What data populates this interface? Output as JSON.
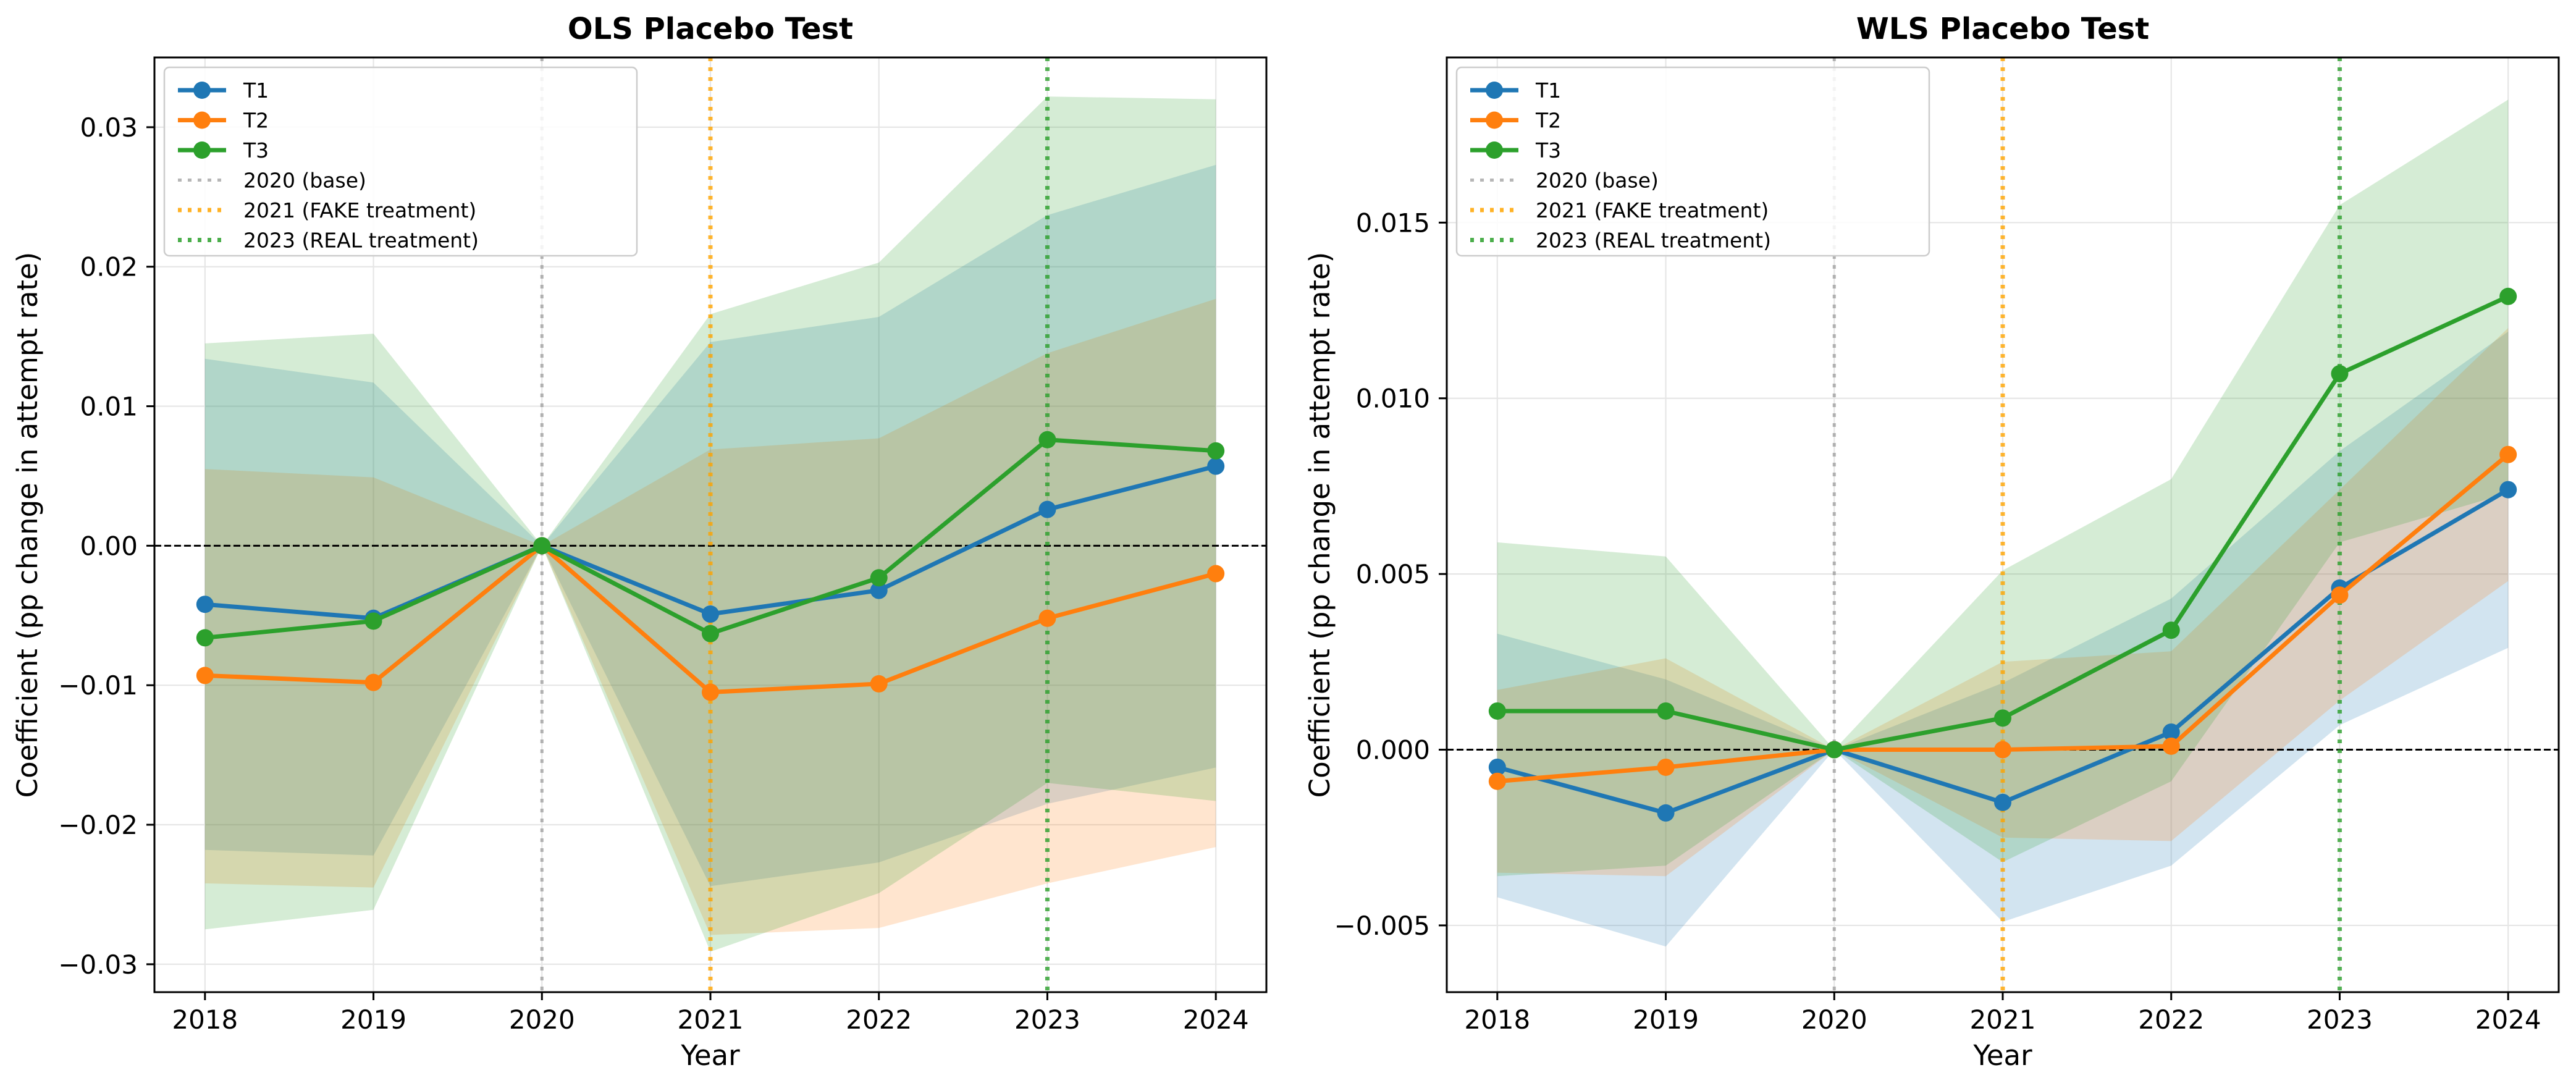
{
  "colors": {
    "T1": "#1f77b4",
    "T2": "#ff7f0e",
    "T3": "#2ca02c",
    "base": "#aaaaaa",
    "fake": "#ffa500",
    "real": "#2ca02c",
    "grid": "#e6e6e6",
    "zero": "#000000"
  },
  "chart_data": [
    {
      "type": "line",
      "title": "OLS Placebo Test",
      "xlabel": "Year",
      "ylabel": "Coefficient (pp change in attempt rate)",
      "x": [
        2018,
        2019,
        2020,
        2021,
        2022,
        2023,
        2024
      ],
      "xlim": [
        2017.7,
        2024.3
      ],
      "ylim": [
        -0.032,
        0.035
      ],
      "yticks": [
        -0.03,
        -0.02,
        -0.01,
        0.0,
        0.01,
        0.02,
        0.03
      ],
      "ytick_labels": [
        "−0.03",
        "−0.02",
        "−0.01",
        "0.00",
        "0.01",
        "0.02",
        "0.03"
      ],
      "grid": true,
      "legend_position": "top-left",
      "series": [
        {
          "name": "T1",
          "values": [
            -0.0042,
            -0.0052,
            0.0,
            -0.0049,
            -0.0032,
            0.0026,
            0.0057
          ],
          "ci_low": [
            -0.0218,
            -0.0222,
            0.0,
            -0.0244,
            -0.0227,
            -0.0185,
            -0.0159
          ],
          "ci_high": [
            0.0134,
            0.0117,
            0.0,
            0.0146,
            0.0164,
            0.0237,
            0.0273
          ]
        },
        {
          "name": "T2",
          "values": [
            -0.0093,
            -0.0098,
            0.0,
            -0.0105,
            -0.0099,
            -0.0052,
            -0.002
          ],
          "ci_low": [
            -0.0242,
            -0.0245,
            0.0,
            -0.0279,
            -0.0274,
            -0.0242,
            -0.0216
          ],
          "ci_high": [
            0.0055,
            0.0049,
            0.0,
            0.0069,
            0.0077,
            0.0138,
            0.0177
          ]
        },
        {
          "name": "T3",
          "values": [
            -0.0066,
            -0.0054,
            0.0,
            -0.0063,
            -0.0023,
            0.0076,
            0.0068
          ],
          "ci_low": [
            -0.0275,
            -0.0261,
            0.0,
            -0.0291,
            -0.0249,
            -0.017,
            -0.0183
          ],
          "ci_high": [
            0.0145,
            0.0152,
            0.0,
            0.0166,
            0.0203,
            0.0322,
            0.032
          ]
        }
      ],
      "vlines": [
        {
          "x": 2020,
          "label": "2020 (base)",
          "color_key": "base"
        },
        {
          "x": 2021,
          "label": "2021 (FAKE treatment)",
          "color_key": "fake"
        },
        {
          "x": 2023,
          "label": "2023 (REAL treatment)",
          "color_key": "real"
        }
      ]
    },
    {
      "type": "line",
      "title": "WLS Placebo Test",
      "xlabel": "Year",
      "ylabel": "Coefficient (pp change in attempt rate)",
      "x": [
        2018,
        2019,
        2020,
        2021,
        2022,
        2023,
        2024
      ],
      "xlim": [
        2017.7,
        2024.3
      ],
      "ylim": [
        -0.0069,
        0.0197
      ],
      "yticks": [
        -0.005,
        0.0,
        0.005,
        0.01,
        0.015
      ],
      "ytick_labels": [
        "−0.005",
        "0.000",
        "0.005",
        "0.010",
        "0.015"
      ],
      "grid": true,
      "legend_position": "top-left",
      "series": [
        {
          "name": "T1",
          "values": [
            -0.0005,
            -0.0018,
            0.0,
            -0.0015,
            0.0005,
            0.0046,
            0.0074
          ],
          "ci_low": [
            -0.0042,
            -0.0056,
            0.0,
            -0.0049,
            -0.0033,
            0.0007,
            0.0029
          ],
          "ci_high": [
            0.0033,
            0.002,
            0.0,
            0.0019,
            0.0043,
            0.0085,
            0.0119
          ]
        },
        {
          "name": "T2",
          "values": [
            -0.0009,
            -0.0005,
            0.0,
            0.0,
            0.0001,
            0.0044,
            0.0084
          ],
          "ci_low": [
            -0.0035,
            -0.0036,
            0.0,
            -0.0025,
            -0.0026,
            0.0014,
            0.0048
          ],
          "ci_high": [
            0.0017,
            0.0026,
            0.0,
            0.0025,
            0.0028,
            0.0074,
            0.012
          ]
        },
        {
          "name": "T3",
          "values": [
            0.0011,
            0.0011,
            0.0,
            0.0009,
            0.0034,
            0.0107,
            0.0129
          ],
          "ci_low": [
            -0.0036,
            -0.0033,
            0.0,
            -0.0032,
            -0.0009,
            0.0059,
            0.0073
          ],
          "ci_high": [
            0.0059,
            0.0055,
            0.0,
            0.0051,
            0.0077,
            0.0155,
            0.0185
          ]
        }
      ],
      "vlines": [
        {
          "x": 2020,
          "label": "2020 (base)",
          "color_key": "base"
        },
        {
          "x": 2021,
          "label": "2021 (FAKE treatment)",
          "color_key": "fake"
        },
        {
          "x": 2023,
          "label": "2023 (REAL treatment)",
          "color_key": "real"
        }
      ]
    }
  ]
}
